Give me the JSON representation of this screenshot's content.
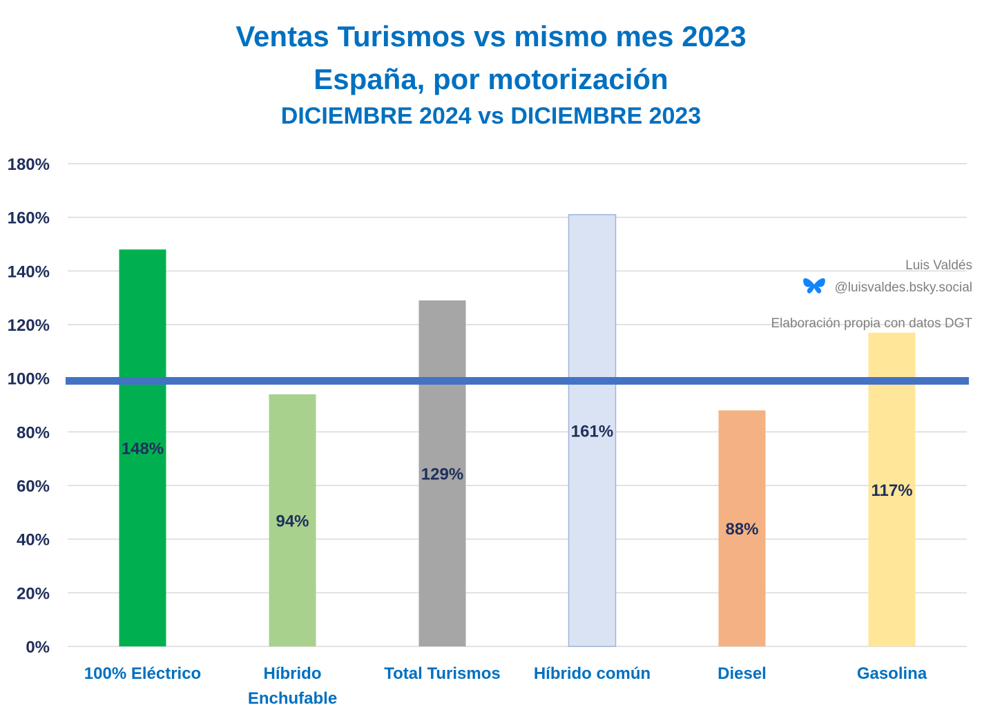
{
  "chart_data": {
    "type": "bar",
    "title": "Ventas Turismos vs mismo mes 2023",
    "subtitle": "España, por motorización",
    "period": "DICIEMBRE 2024 vs DICIEMBRE 2023",
    "categories": [
      [
        "100% Eléctrico"
      ],
      [
        "Híbrido",
        "Enchufable"
      ],
      [
        "Total Turismos"
      ],
      [
        "Híbrido común"
      ],
      [
        "Diesel"
      ],
      [
        "Gasolina"
      ]
    ],
    "values": [
      148,
      94,
      129,
      161,
      88,
      117
    ],
    "data_labels": [
      "148%",
      "94%",
      "129%",
      "161%",
      "88%",
      "117%"
    ],
    "colors": [
      "#00B050",
      "#A9D18E",
      "#A6A6A6",
      "#DAE3F3",
      "#F4B183",
      "#FFE699"
    ],
    "y_ticks": [
      0,
      20,
      40,
      60,
      80,
      100,
      120,
      140,
      160,
      180
    ],
    "y_tick_labels": [
      "0%",
      "20%",
      "40%",
      "60%",
      "80%",
      "100%",
      "120%",
      "140%",
      "160%",
      "180%"
    ],
    "ylim": [
      0,
      180
    ],
    "reference_line": {
      "value": 99,
      "color": "#4472C4"
    },
    "grid": true,
    "legend": "none"
  },
  "credits": {
    "author": "Luis Valdés",
    "handle": "@luisvaldes.bsky.social",
    "source": "Elaboración propia con datos DGT"
  }
}
